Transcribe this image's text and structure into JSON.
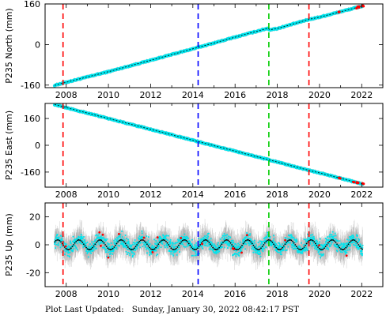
{
  "footer": {
    "label": "Plot Last Updated:",
    "value": "Sunday, January 30, 2022 08:42:17 PST"
  },
  "colors": {
    "data": "#00e5ee",
    "error_bar": "#a8a8a8",
    "model_line": "#000000",
    "outlier": "#ff0000",
    "vline_red": "#ff0000",
    "vline_blue": "#0000ff",
    "vline_green": "#00cc00"
  },
  "event_lines": [
    {
      "year": 2007.85,
      "color": "#ff0000"
    },
    {
      "year": 2014.25,
      "color": "#0000ff"
    },
    {
      "year": 2017.6,
      "color": "#00cc00"
    },
    {
      "year": 2019.5,
      "color": "#ff0000"
    }
  ],
  "chart_data": [
    {
      "type": "scatter",
      "ylabel": "P235 North (mm)",
      "xlim": [
        2007,
        2023
      ],
      "ylim": [
        -170,
        160
      ],
      "xticks": [
        2008,
        2010,
        2012,
        2014,
        2016,
        2018,
        2020,
        2022
      ],
      "yticks": [
        -160,
        0,
        160
      ],
      "series": [
        {
          "x": [
            2007.4,
            2007.85,
            2010,
            2012,
            2014,
            2016,
            2017.55,
            2017.62,
            2018,
            2019.5,
            2020,
            2022
          ],
          "y": [
            -162,
            -152,
            -107,
            -62,
            -17,
            29,
            64,
            58,
            63,
            99,
            108,
            151
          ]
        }
      ]
    },
    {
      "type": "scatter",
      "ylabel": "P235 East (mm)",
      "xlim": [
        2007,
        2023
      ],
      "ylim": [
        -250,
        250
      ],
      "xticks": [
        2008,
        2010,
        2012,
        2014,
        2016,
        2018,
        2020,
        2022
      ],
      "yticks": [
        -160,
        0,
        160
      ],
      "series": [
        {
          "x": [
            2007.4,
            2008,
            2010,
            2012,
            2014,
            2016,
            2018,
            2019.5,
            2020,
            2022
          ],
          "y": [
            245,
            225,
            160,
            95,
            30,
            -35,
            -100,
            -150,
            -165,
            -230
          ]
        }
      ]
    },
    {
      "type": "scatter",
      "ylabel": "P235 Up (mm)",
      "xlim": [
        2007,
        2023
      ],
      "ylim": [
        -30,
        30
      ],
      "xticks": [
        2008,
        2010,
        2012,
        2014,
        2016,
        2018,
        2020,
        2022
      ],
      "yticks": [
        -20,
        0,
        20
      ],
      "model": {
        "mean": 0,
        "amplitude": 3.5,
        "period_years": 1
      },
      "series": [
        {
          "x": [
            2008,
            2010,
            2012,
            2014,
            2016,
            2018,
            2020,
            2022
          ],
          "y": [
            0,
            0,
            0,
            0,
            0,
            0,
            0,
            0
          ]
        }
      ]
    }
  ]
}
